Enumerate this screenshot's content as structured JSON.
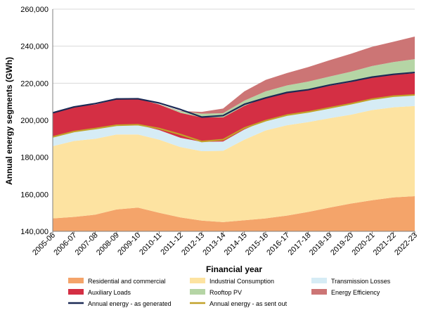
{
  "chart_data": {
    "type": "area",
    "title": "",
    "xlabel": "Financial year",
    "ylabel": "Annual energy segments (GWh)",
    "ylim": [
      140000,
      260000
    ],
    "yticks": [
      140000,
      160000,
      180000,
      200000,
      220000,
      240000,
      260000
    ],
    "ytick_labels": [
      "140,000",
      "160,000",
      "180,000",
      "200,000",
      "220,000",
      "240,000",
      "260,000"
    ],
    "categories": [
      "2005-06",
      "2006-07",
      "2007-08",
      "2008-09",
      "2009-10",
      "2010-11",
      "2011-12",
      "2012-13",
      "2013-14",
      "2014-15",
      "2015-16",
      "2016-17",
      "2017-18",
      "2018-19",
      "2019-20",
      "2020-21",
      "2021-22",
      "2022-23"
    ],
    "stacked_areas": [
      {
        "name": "Residential and commercial",
        "color": "#f4a46a",
        "values": [
          147000,
          147800,
          149000,
          151800,
          152800,
          150000,
          147500,
          145800,
          145000,
          146000,
          147000,
          148500,
          150500,
          152800,
          155000,
          156800,
          158300,
          159000
        ]
      },
      {
        "name": "Industrial Consumption",
        "color": "#fde3a1",
        "values": [
          39000,
          41000,
          41000,
          40500,
          39500,
          39500,
          38000,
          37500,
          38500,
          43500,
          47500,
          48800,
          48500,
          48300,
          48000,
          48700,
          48700,
          48700
        ]
      },
      {
        "name": "Transmission Losses",
        "color": "#d6ecf5",
        "values": [
          5000,
          5200,
          5200,
          5200,
          5300,
          5200,
          5000,
          5000,
          5000,
          5500,
          5500,
          5500,
          5500,
          5600,
          5700,
          5800,
          5900,
          6000
        ]
      },
      {
        "name": "Auxiliary Loads",
        "color": "#d42f44",
        "values": [
          13000,
          13200,
          13300,
          13700,
          14000,
          13800,
          13500,
          13200,
          13000,
          12800,
          12300,
          12200,
          12000,
          11900,
          11900,
          11800,
          11700,
          11700
        ]
      },
      {
        "name": "Rooftop PV",
        "color": "#b5d5a5",
        "values": [
          0,
          0,
          0,
          0,
          0,
          200,
          800,
          2000,
          2300,
          2800,
          3300,
          3800,
          4400,
          5000,
          5600,
          6200,
          6800,
          7600
        ]
      },
      {
        "name": "Energy Efficiency",
        "color": "#cc7575",
        "values": [
          0,
          0,
          0,
          0,
          0,
          0,
          200,
          1000,
          2500,
          5000,
          6200,
          6700,
          7800,
          8800,
          9700,
          10400,
          11000,
          12200
        ]
      }
    ],
    "lines": [
      {
        "name": "Annual energy - as generated",
        "color": "#1c2a55",
        "values": [
          204000,
          207200,
          209000,
          211500,
          211600,
          209300,
          205800,
          201700,
          202500,
          208600,
          212100,
          215000,
          216500,
          219000,
          221000,
          223300,
          224800,
          225800
        ]
      },
      {
        "name": "Annual energy - as sent out",
        "color": "#c2a12a",
        "values": [
          191000,
          193900,
          195500,
          197300,
          197600,
          195500,
          192300,
          188500,
          189500,
          195800,
          199800,
          202800,
          204500,
          206700,
          208900,
          211400,
          213000,
          213700
        ]
      }
    ],
    "legend": {
      "placement": "bottom",
      "entries": [
        {
          "label": "Residential and commercial",
          "color": "#f4a46a",
          "kind": "area"
        },
        {
          "label": "Industrial Consumption",
          "color": "#fde3a1",
          "kind": "area"
        },
        {
          "label": "Transmission Losses",
          "color": "#d6ecf5",
          "kind": "area"
        },
        {
          "label": "Auxiliary Loads",
          "color": "#d42f44",
          "kind": "area"
        },
        {
          "label": "Rooftop PV",
          "color": "#b5d5a5",
          "kind": "area"
        },
        {
          "label": "Energy Efficiency",
          "color": "#cc7575",
          "kind": "area"
        },
        {
          "label": "Annual energy - as generated",
          "color": "#1c2a55",
          "kind": "line"
        },
        {
          "label": "Annual energy - as sent out",
          "color": "#c2a12a",
          "kind": "line"
        }
      ]
    },
    "grid": "horizontal"
  }
}
